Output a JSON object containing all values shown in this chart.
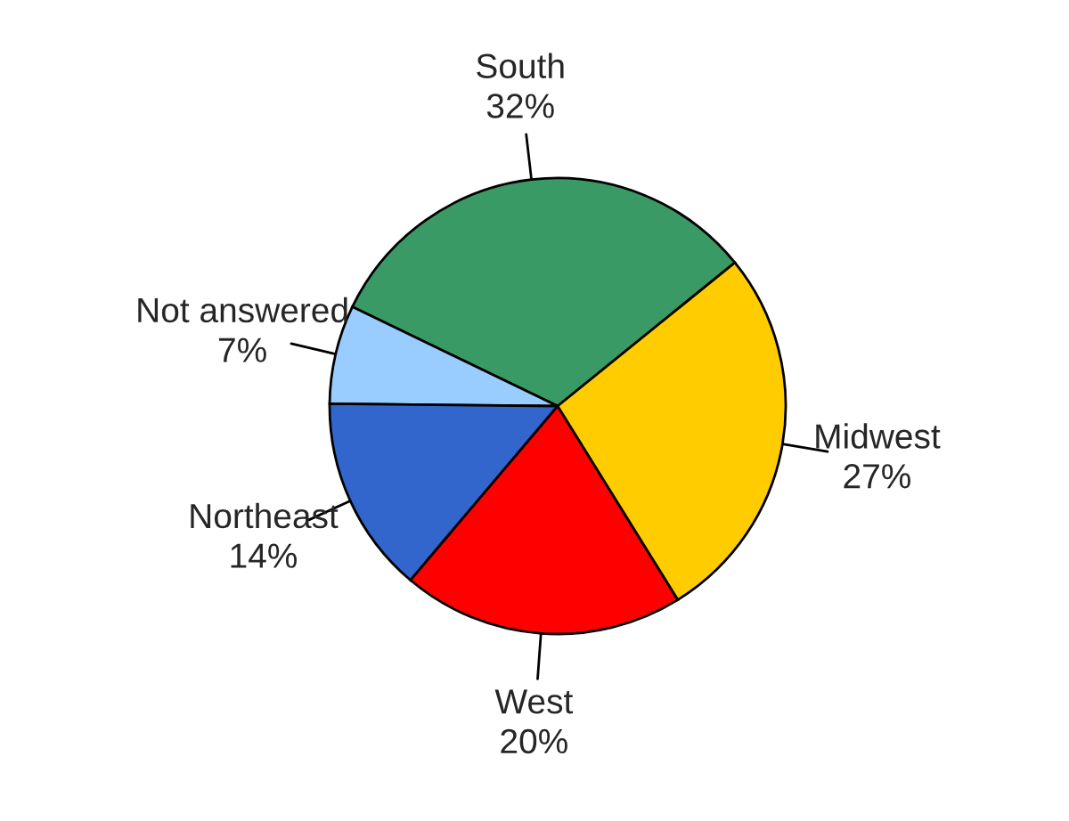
{
  "chart_data": {
    "type": "pie",
    "categories": [
      "South",
      "Not answered",
      "Northeast",
      "West",
      "Midwest"
    ],
    "values": [
      32,
      7,
      14,
      20,
      27
    ],
    "colors": [
      "#3a9a66",
      "#99ccff",
      "#3366cc",
      "#ff0000",
      "#ffcc00"
    ],
    "data_labels": true,
    "value_labels": [
      "32%",
      "7%",
      "14%",
      "20%",
      "27%"
    ]
  }
}
